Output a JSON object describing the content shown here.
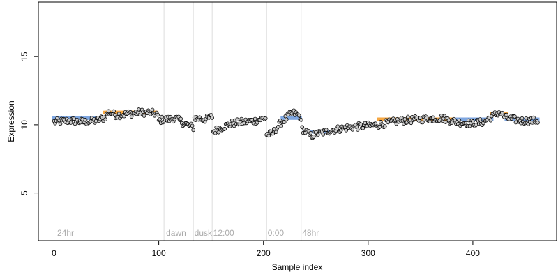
{
  "chart_data": {
    "type": "scatter",
    "title": "",
    "xlabel": "Sample index",
    "ylabel": "Expression",
    "xlim": [
      -15,
      480
    ],
    "ylim": [
      1.5,
      19
    ],
    "x_ticks": [
      0,
      100,
      200,
      300,
      400
    ],
    "y_ticks": [
      5,
      10,
      15
    ],
    "grid": false,
    "segment_boundaries": [
      105,
      133,
      151,
      203,
      236
    ],
    "segment_labels": [
      {
        "label": "24hr",
        "x": 3
      },
      {
        "label": "dawn",
        "x": 107
      },
      {
        "label": "dusk",
        "x": 134
      },
      {
        "label": "12:00",
        "x": 152
      },
      {
        "label": "0:00",
        "x": 204
      },
      {
        "label": "48hr",
        "x": 237
      }
    ],
    "colors": {
      "point_fill": "#cccccc",
      "point_edge": "#000000",
      "high_state": "#f5a742",
      "low_state": "#7fa7e0",
      "boundary": "#dddddd"
    },
    "state_blocks": [
      {
        "state": "low",
        "x": [
          0,
          48
        ],
        "y": 10.5
      },
      {
        "state": "high",
        "x": [
          48,
          98
        ],
        "y": 10.9
      },
      {
        "state": "low",
        "x": [
          218,
          235
        ],
        "y": 10.5
      },
      {
        "state": "low",
        "x": [
          239,
          262
        ],
        "y": 9.5
      },
      {
        "state": "high",
        "x": [
          310,
          385
        ],
        "y": 10.4
      },
      {
        "state": "low",
        "x": [
          385,
          418
        ],
        "y": 10.4
      },
      {
        "state": "high",
        "x": [
          418,
          432
        ],
        "y": 10.8
      },
      {
        "state": "low",
        "x": [
          432,
          462
        ],
        "y": 10.4
      }
    ],
    "series_anchors": [
      [
        0,
        10.2
      ],
      [
        15,
        10.3
      ],
      [
        30,
        10.2
      ],
      [
        40,
        10.3
      ],
      [
        48,
        10.5
      ],
      [
        52,
        10.9
      ],
      [
        60,
        10.7
      ],
      [
        70,
        10.8
      ],
      [
        80,
        10.9
      ],
      [
        90,
        10.9
      ],
      [
        98,
        10.8
      ],
      [
        100,
        10.3
      ],
      [
        105,
        10.4
      ],
      [
        110,
        10.4
      ],
      [
        115,
        10.5
      ],
      [
        120,
        10.3
      ],
      [
        127,
        10.0
      ],
      [
        133,
        9.8
      ],
      [
        134,
        10.5
      ],
      [
        145,
        10.4
      ],
      [
        151,
        10.6
      ],
      [
        152,
        9.5
      ],
      [
        160,
        9.8
      ],
      [
        170,
        10.1
      ],
      [
        180,
        10.2
      ],
      [
        192,
        10.3
      ],
      [
        202,
        10.5
      ],
      [
        203,
        9.3
      ],
      [
        208,
        9.3
      ],
      [
        215,
        10.0
      ],
      [
        222,
        10.5
      ],
      [
        228,
        10.9
      ],
      [
        235,
        10.6
      ],
      [
        237,
        9.7
      ],
      [
        245,
        9.2
      ],
      [
        255,
        9.4
      ],
      [
        265,
        9.6
      ],
      [
        280,
        9.8
      ],
      [
        295,
        9.9
      ],
      [
        310,
        10.0
      ],
      [
        330,
        10.3
      ],
      [
        350,
        10.4
      ],
      [
        370,
        10.5
      ],
      [
        385,
        10.2
      ],
      [
        400,
        10.1
      ],
      [
        410,
        10.2
      ],
      [
        418,
        10.6
      ],
      [
        425,
        10.9
      ],
      [
        432,
        10.5
      ],
      [
        445,
        10.3
      ],
      [
        462,
        10.3
      ]
    ],
    "n_points": 463
  }
}
